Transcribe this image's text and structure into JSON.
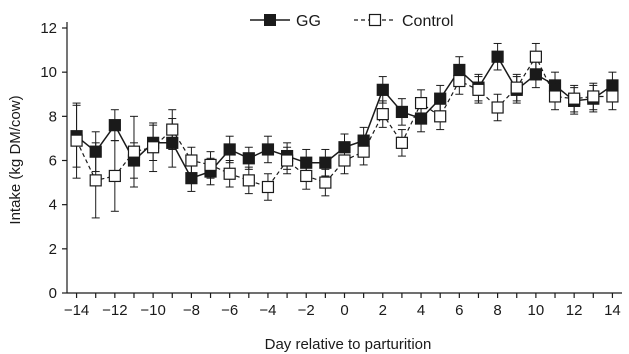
{
  "chart_data": {
    "type": "line",
    "title": "",
    "xlabel": "Day relative to parturition",
    "ylabel": "Intake (kg DM/cow)",
    "xlim": [
      -14.5,
      14.5
    ],
    "ylim": [
      0,
      12
    ],
    "xticks": [
      -14,
      -12,
      -10,
      -8,
      -6,
      -4,
      -2,
      0,
      2,
      4,
      6,
      8,
      10,
      12,
      14
    ],
    "yticks": [
      0,
      2,
      4,
      6,
      8,
      10,
      12
    ],
    "grid": false,
    "legend_position": "top-center",
    "x": [
      -14,
      -13,
      -12,
      -11,
      -10,
      -9,
      -8,
      -7,
      -6,
      -5,
      -4,
      -3,
      -2,
      -1,
      0,
      1,
      2,
      3,
      4,
      5,
      6,
      7,
      8,
      9,
      10,
      11,
      12,
      13,
      14
    ],
    "series": [
      {
        "name": "GG",
        "marker": "filled-square",
        "line_style": "solid",
        "color": "#1a1a1a",
        "values": [
          7.1,
          6.4,
          7.6,
          6.0,
          6.8,
          6.8,
          5.2,
          5.5,
          6.5,
          6.1,
          6.5,
          6.2,
          5.9,
          5.9,
          6.6,
          6.9,
          9.2,
          8.2,
          7.9,
          8.8,
          10.1,
          9.3,
          10.7,
          9.2,
          9.9,
          9.4,
          8.7,
          8.8,
          9.4
        ],
        "error": [
          1.4,
          0.9,
          0.7,
          0.8,
          0.8,
          1.1,
          0.6,
          0.6,
          0.6,
          0.5,
          0.6,
          0.6,
          0.6,
          0.6,
          0.6,
          0.6,
          0.6,
          0.6,
          0.6,
          0.6,
          0.6,
          0.6,
          0.6,
          0.6,
          0.6,
          0.6,
          0.6,
          0.6,
          0.6
        ]
      },
      {
        "name": "Control",
        "marker": "open-square",
        "line_style": "dashed",
        "color": "#1a1a1a",
        "values": [
          6.9,
          5.1,
          5.3,
          6.4,
          6.6,
          7.4,
          6.0,
          5.8,
          5.4,
          5.1,
          4.8,
          6.0,
          5.3,
          5.0,
          6.0,
          6.4,
          8.1,
          6.8,
          8.6,
          8.0,
          9.6,
          9.2,
          8.4,
          9.3,
          10.7,
          8.9,
          8.8,
          8.9,
          8.9
        ],
        "error": [
          1.7,
          1.7,
          1.6,
          1.6,
          1.1,
          0.9,
          0.6,
          0.6,
          0.6,
          0.6,
          0.6,
          0.6,
          0.6,
          0.6,
          0.6,
          0.6,
          0.6,
          0.6,
          0.6,
          0.6,
          0.6,
          0.6,
          0.6,
          0.6,
          0.6,
          0.6,
          0.6,
          0.6,
          0.6
        ]
      }
    ]
  }
}
